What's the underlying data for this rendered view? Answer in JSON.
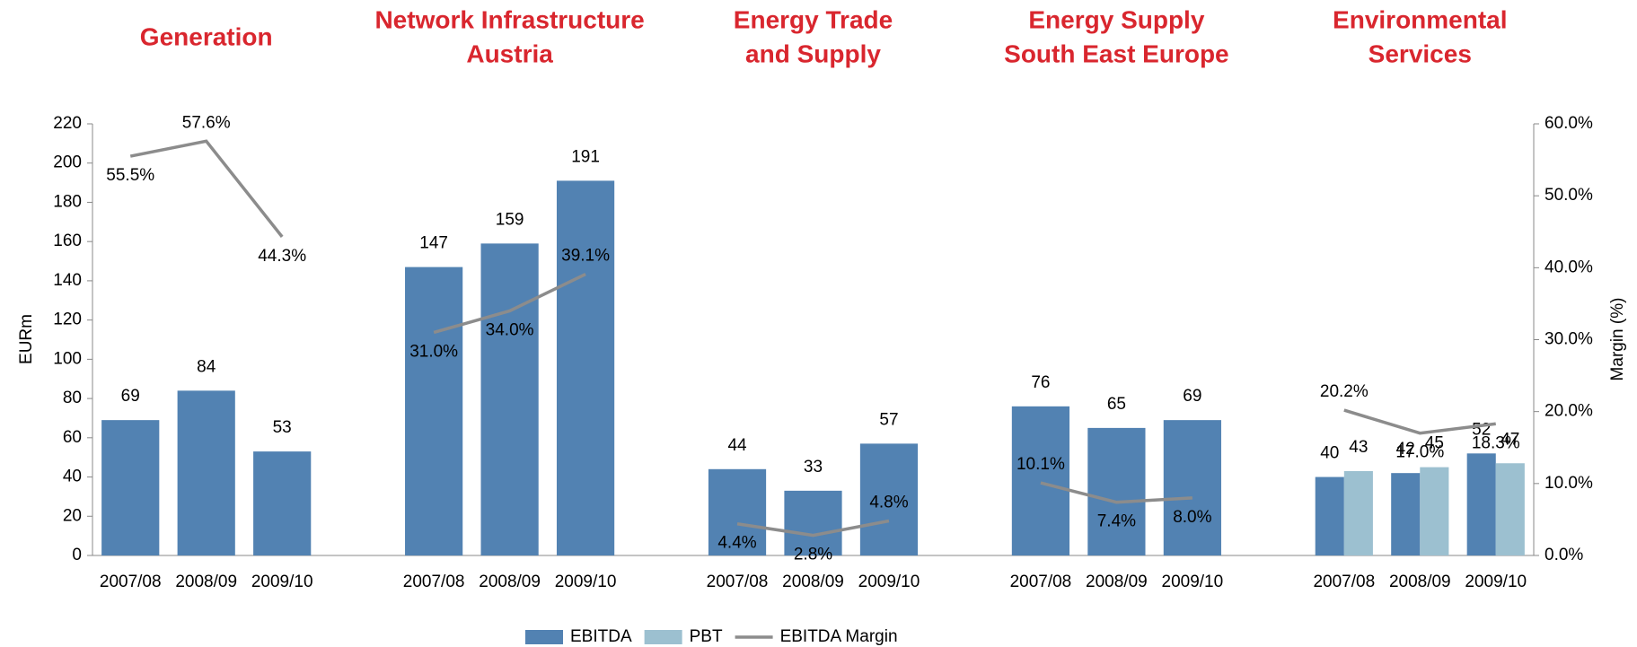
{
  "chart_data": {
    "type": "bar",
    "ylabel": "EURm",
    "y2label": "Margin (%)",
    "ylim": [
      0,
      220
    ],
    "yticks": [
      0,
      20,
      40,
      60,
      80,
      100,
      120,
      140,
      160,
      180,
      200,
      220
    ],
    "y2lim": [
      0,
      60
    ],
    "y2ticks": [
      {
        "value": 0,
        "label": "0.0%"
      },
      {
        "value": 10,
        "label": "10.0%"
      },
      {
        "value": 20,
        "label": "20.0%"
      },
      {
        "value": 30,
        "label": "30.0%"
      },
      {
        "value": 40,
        "label": "40.0%"
      },
      {
        "value": 50,
        "label": "50.0%"
      },
      {
        "value": 60,
        "label": "60.0%"
      }
    ],
    "groups": [
      {
        "title": [
          "Generation"
        ],
        "categories": [
          "2007/08",
          "2008/09",
          "2009/10"
        ]
      },
      {
        "title": [
          "Network Infrastructure",
          "Austria"
        ],
        "categories": [
          "2007/08",
          "2008/09",
          "2009/10"
        ]
      },
      {
        "title": [
          "Energy Trade",
          "and Supply"
        ],
        "categories": [
          "2007/08",
          "2008/09",
          "2009/10"
        ]
      },
      {
        "title": [
          "Energy Supply",
          "South East Europe"
        ],
        "categories": [
          "2007/08",
          "2008/09",
          "2009/10"
        ]
      },
      {
        "title": [
          "Environmental",
          "Services"
        ],
        "categories": [
          "2007/08",
          "2008/09",
          "2009/10"
        ]
      }
    ],
    "series": [
      {
        "name": "EBITDA",
        "color": "#5282b2",
        "values": [
          69,
          84,
          53,
          147,
          159,
          191,
          44,
          33,
          57,
          76,
          65,
          69,
          40,
          42,
          52
        ]
      },
      {
        "name": "PBT",
        "color": "#9cc0d0",
        "values": [
          null,
          null,
          null,
          null,
          null,
          null,
          null,
          null,
          null,
          null,
          null,
          null,
          43,
          45,
          47
        ]
      },
      {
        "name": "EBITDA Margin",
        "color": "#8c8c8c",
        "axis": "y2",
        "type": "line",
        "values": [
          55.5,
          57.6,
          44.3,
          31.0,
          34.0,
          39.1,
          4.4,
          2.8,
          4.8,
          10.1,
          7.4,
          8.0,
          20.2,
          17.0,
          18.3
        ],
        "value_labels": [
          "55.5%",
          "57.6%",
          "44.3%",
          "31.0%",
          "34.0%",
          "39.1%",
          "4.4%",
          "2.8%",
          "4.8%",
          "10.1%",
          "7.4%",
          "8.0%",
          "20.2%",
          "17.0%",
          "18.3%"
        ]
      }
    ]
  }
}
